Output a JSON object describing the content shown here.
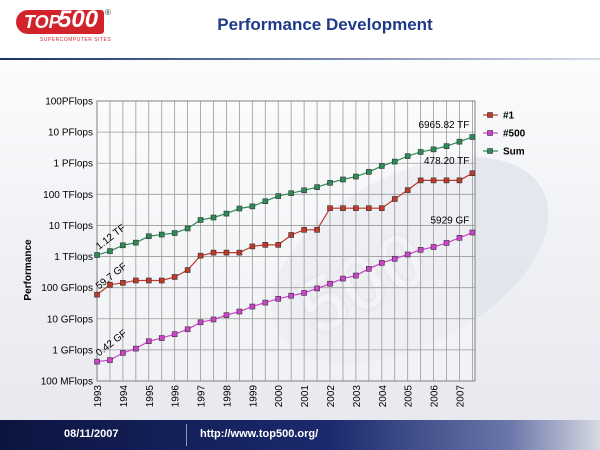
{
  "header": {
    "title": "Performance Development",
    "logo_text": "TOP",
    "logo_number": "500",
    "logo_reg": "®",
    "logo_subtitle": "SUPERCOMPUTER SITES"
  },
  "footer": {
    "date": "08/11/2007",
    "url": "http://www.top500.org/"
  },
  "colors": {
    "n1": "#c0392b",
    "n500": "#cc44cc",
    "sum": "#2e8b57",
    "accent": "#1f3a8a"
  },
  "chart_data": {
    "type": "line",
    "title": "Performance Development",
    "xlabel": "",
    "ylabel": "Performance",
    "yscale": "log",
    "ylim_flops": [
      100000000.0,
      1e+17
    ],
    "y_tick_labels": [
      "100 MFlops",
      "1 GFlops",
      "10 GFlops",
      "100 GFlops",
      "1 TFlops",
      "10 TFlops",
      "100 TFlops",
      "1 PFlops",
      "10 PFlops",
      "100PFlops"
    ],
    "x_tick_labels": [
      "1993",
      "1994",
      "1995",
      "1996",
      "1997",
      "1998",
      "1999",
      "2000",
      "2001",
      "2002",
      "2003",
      "2004",
      "2005",
      "2006",
      "2007"
    ],
    "xlim": [
      1993.0,
      2007.6
    ],
    "grid": true,
    "legend_position": "right",
    "series": [
      {
        "name": "#1",
        "x": [
          1993.0,
          1993.5,
          1994.0,
          1994.5,
          1995.0,
          1995.5,
          1996.0,
          1996.5,
          1997.0,
          1997.5,
          1998.0,
          1998.5,
          1999.0,
          1999.5,
          2000.0,
          2000.5,
          2001.0,
          2001.5,
          2002.0,
          2002.5,
          2003.0,
          2003.5,
          2004.0,
          2004.5,
          2005.0,
          2005.5,
          2006.0,
          2006.5,
          2007.0,
          2007.5
        ],
        "gflops": [
          59.7,
          124,
          143.4,
          170,
          170,
          170,
          220.4,
          368.2,
          1068,
          1338,
          1338,
          1338,
          2121,
          2379,
          2379,
          4938,
          7226,
          7226,
          35860,
          35860,
          35860,
          35860,
          35860,
          70720,
          136800,
          280600,
          280600,
          280600,
          280600,
          478200
        ]
      },
      {
        "name": "#500",
        "x": [
          1993.0,
          1993.5,
          1994.0,
          1994.5,
          1995.0,
          1995.5,
          1996.0,
          1996.5,
          1997.0,
          1997.5,
          1998.0,
          1998.5,
          1999.0,
          1999.5,
          2000.0,
          2000.5,
          2001.0,
          2001.5,
          2002.0,
          2002.5,
          2003.0,
          2003.5,
          2004.0,
          2004.5,
          2005.0,
          2005.5,
          2006.0,
          2006.5,
          2007.0,
          2007.5
        ],
        "gflops": [
          0.42,
          0.47,
          0.8,
          1.1,
          1.9,
          2.4,
          3.2,
          4.6,
          7.7,
          9.5,
          13.1,
          17.1,
          24.7,
          33.1,
          43.8,
          55.1,
          67.8,
          94.3,
          134.3,
          195.8,
          245.1,
          403.4,
          624,
          850,
          1166,
          1646,
          2026,
          2737,
          4005,
          5929
        ]
      },
      {
        "name": "Sum",
        "x": [
          1993.0,
          1993.5,
          1994.0,
          1994.5,
          1995.0,
          1995.5,
          1996.0,
          1996.5,
          1997.0,
          1997.5,
          1998.0,
          1998.5,
          1999.0,
          1999.5,
          2000.0,
          2000.5,
          2001.0,
          2001.5,
          2002.0,
          2002.5,
          2003.0,
          2003.5,
          2004.0,
          2004.5,
          2005.0,
          2005.5,
          2006.0,
          2006.5,
          2007.0,
          2007.5
        ],
        "gflops": [
          1120,
          1500,
          2300,
          2800,
          4500,
          5100,
          5700,
          8000,
          15000,
          18000,
          24000,
          35000,
          41000,
          60000,
          88000,
          109000,
          135000,
          170000,
          234000,
          300000,
          373000,
          526000,
          813000,
          1127000,
          1690000,
          2300000,
          2790000,
          3540000,
          4920000,
          6965820
        ]
      }
    ],
    "annotations": [
      {
        "text": "1.12 TF",
        "series": "Sum",
        "x": 1993.0,
        "gflops": 1120
      },
      {
        "text": "59.7 GF",
        "series": "#1",
        "x": 1993.0,
        "gflops": 59.7
      },
      {
        "text": "0.42 GF",
        "series": "#500",
        "x": 1993.0,
        "gflops": 0.42
      },
      {
        "text": "6965.82 TF",
        "series": "Sum",
        "x": 2007.5,
        "gflops": 6965820
      },
      {
        "text": "478.20 TF",
        "series": "#1",
        "x": 2007.5,
        "gflops": 478200
      },
      {
        "text": "5929 GF",
        "series": "#500",
        "x": 2007.5,
        "gflops": 5929
      }
    ]
  }
}
